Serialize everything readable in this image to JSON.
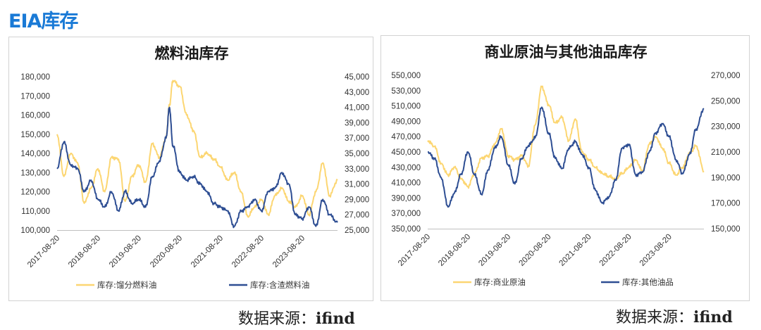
{
  "page": {
    "title": "EIA库存",
    "source_label": "数据来源：",
    "source_value": "ifind"
  },
  "colors": {
    "left_series": "#fcd672",
    "right_series": "#2e4e93",
    "accent": "#1a7ad6"
  },
  "chart_data": [
    {
      "type": "line",
      "title": "燃料油库存",
      "x_tick_labels": [
        "2017-08-20",
        "2018-08-20",
        "2019-08-20",
        "2020-08-20",
        "2021-08-20",
        "2022-08-20",
        "2023-08-20"
      ],
      "x_range": [
        "2017-08-20",
        "2024-06-30"
      ],
      "y_left": {
        "range": [
          100000,
          180000
        ],
        "ticks": [
          "100,000",
          "110,000",
          "120,000",
          "130,000",
          "140,000",
          "150,000",
          "160,000",
          "170,000",
          "180,000"
        ]
      },
      "y_right": {
        "range": [
          25000,
          45000
        ],
        "ticks": [
          "25,000",
          "27,000",
          "29,000",
          "31,000",
          "33,000",
          "35,000",
          "37,000",
          "39,000",
          "41,000",
          "43,000",
          "45,000"
        ]
      },
      "grid": false,
      "legend_position": "bottom",
      "series": [
        {
          "name": "库存:馏分燃料油",
          "axis": "left",
          "color": "#fcd672",
          "x": [
            "2017-08-20",
            "2017-10-20",
            "2017-12-20",
            "2018-02-20",
            "2018-04-20",
            "2018-06-20",
            "2018-08-20",
            "2018-10-20",
            "2018-12-20",
            "2019-02-20",
            "2019-04-20",
            "2019-06-20",
            "2019-08-20",
            "2019-10-20",
            "2019-12-20",
            "2020-02-20",
            "2020-04-20",
            "2020-05-20",
            "2020-06-20",
            "2020-08-20",
            "2020-10-20",
            "2020-12-20",
            "2021-02-20",
            "2021-04-20",
            "2021-06-20",
            "2021-08-20",
            "2021-10-20",
            "2021-12-20",
            "2022-02-20",
            "2022-04-20",
            "2022-06-20",
            "2022-08-20",
            "2022-10-20",
            "2022-12-20",
            "2023-02-20",
            "2023-04-20",
            "2023-06-20",
            "2023-08-20",
            "2023-10-20",
            "2023-12-20",
            "2024-02-20",
            "2024-04-20",
            "2024-06-30"
          ],
          "values": [
            150000,
            128000,
            140000,
            135000,
            114000,
            122000,
            132000,
            120000,
            138000,
            137000,
            115000,
            128000,
            134000,
            125000,
            145000,
            138000,
            148000,
            165000,
            178000,
            175000,
            160000,
            152000,
            138000,
            140000,
            137000,
            133000,
            126000,
            130000,
            120000,
            107000,
            112000,
            116000,
            108000,
            118000,
            122000,
            115000,
            112000,
            118000,
            108000,
            120000,
            135000,
            118000,
            126000
          ]
        },
        {
          "name": "库存:含渣燃料油",
          "axis": "right",
          "color": "#2e4e93",
          "x": [
            "2017-08-20",
            "2017-10-20",
            "2017-12-20",
            "2018-02-20",
            "2018-04-20",
            "2018-06-20",
            "2018-08-20",
            "2018-10-20",
            "2018-12-20",
            "2019-02-20",
            "2019-04-20",
            "2019-06-20",
            "2019-08-20",
            "2019-10-20",
            "2019-12-20",
            "2020-02-20",
            "2020-04-20",
            "2020-05-20",
            "2020-06-20",
            "2020-08-20",
            "2020-10-20",
            "2020-12-20",
            "2021-02-20",
            "2021-04-20",
            "2021-06-20",
            "2021-08-20",
            "2021-10-20",
            "2021-12-20",
            "2022-02-20",
            "2022-04-20",
            "2022-06-20",
            "2022-08-20",
            "2022-10-20",
            "2022-12-20",
            "2023-02-20",
            "2023-04-20",
            "2023-06-20",
            "2023-08-20",
            "2023-10-20",
            "2023-12-20",
            "2024-02-20",
            "2024-04-20",
            "2024-06-30"
          ],
          "values": [
            33000,
            36500,
            33500,
            33000,
            30000,
            31500,
            29000,
            28000,
            30000,
            27500,
            30000,
            28500,
            29000,
            28000,
            32000,
            34000,
            37000,
            41000,
            36000,
            32500,
            31500,
            32000,
            31000,
            30000,
            28500,
            28000,
            27500,
            25500,
            27500,
            28000,
            29000,
            27500,
            30000,
            30500,
            32500,
            31000,
            27000,
            26500,
            28000,
            25500,
            29000,
            27000,
            26000
          ]
        }
      ]
    },
    {
      "type": "line",
      "title": "商业原油与其他油品库存",
      "x_tick_labels": [
        "2017-08-20",
        "2018-08-20",
        "2019-08-20",
        "2020-08-20",
        "2021-08-20",
        "2022-08-20",
        "2023-08-20"
      ],
      "x_range": [
        "2017-08-20",
        "2024-06-30"
      ],
      "y_left": {
        "range": [
          350000,
          550000
        ],
        "ticks": [
          "350,000",
          "370,000",
          "390,000",
          "410,000",
          "430,000",
          "450,000",
          "470,000",
          "490,000",
          "510,000",
          "530,000",
          "550,000"
        ]
      },
      "y_right": {
        "range": [
          150000,
          270000
        ],
        "ticks": [
          "150,000",
          "170,000",
          "190,000",
          "210,000",
          "230,000",
          "250,000",
          "270,000"
        ]
      },
      "grid": false,
      "legend_position": "bottom",
      "series": [
        {
          "name": "库存:商业原油",
          "axis": "left",
          "color": "#fcd672",
          "x": [
            "2017-08-20",
            "2017-10-20",
            "2017-12-20",
            "2018-02-20",
            "2018-04-20",
            "2018-06-20",
            "2018-08-20",
            "2018-10-20",
            "2018-12-20",
            "2019-02-20",
            "2019-04-20",
            "2019-06-20",
            "2019-08-20",
            "2019-10-20",
            "2019-12-20",
            "2020-02-20",
            "2020-04-20",
            "2020-06-20",
            "2020-08-20",
            "2020-10-20",
            "2020-12-20",
            "2021-02-20",
            "2021-04-20",
            "2021-06-20",
            "2021-08-20",
            "2021-10-20",
            "2021-12-20",
            "2022-02-20",
            "2022-04-20",
            "2022-06-20",
            "2022-08-20",
            "2022-10-20",
            "2022-12-20",
            "2023-02-20",
            "2023-04-20",
            "2023-06-20",
            "2023-08-20",
            "2023-10-20",
            "2023-12-20",
            "2024-02-20",
            "2024-04-20",
            "2024-06-30"
          ],
          "values": [
            465000,
            457000,
            435000,
            420000,
            430000,
            415000,
            405000,
            422000,
            442000,
            445000,
            460000,
            480000,
            445000,
            440000,
            445000,
            432000,
            485000,
            535000,
            512000,
            488000,
            495000,
            465000,
            493000,
            450000,
            440000,
            430000,
            422000,
            418000,
            415000,
            422000,
            430000,
            440000,
            425000,
            460000,
            470000,
            455000,
            435000,
            420000,
            430000,
            448000,
            458000,
            425000
          ]
        },
        {
          "name": "库存:其他油品",
          "axis": "right",
          "color": "#2e4e93",
          "x": [
            "2017-08-20",
            "2017-10-20",
            "2017-12-20",
            "2018-02-20",
            "2018-04-20",
            "2018-06-20",
            "2018-08-20",
            "2018-10-20",
            "2018-12-20",
            "2019-02-20",
            "2019-04-20",
            "2019-06-20",
            "2019-08-20",
            "2019-10-20",
            "2019-12-20",
            "2020-02-20",
            "2020-04-20",
            "2020-06-20",
            "2020-08-20",
            "2020-10-20",
            "2020-12-20",
            "2021-02-20",
            "2021-04-20",
            "2021-06-20",
            "2021-08-20",
            "2021-10-20",
            "2021-12-20",
            "2022-02-20",
            "2022-04-20",
            "2022-06-20",
            "2022-08-20",
            "2022-10-20",
            "2022-12-20",
            "2023-02-20",
            "2023-04-20",
            "2023-06-20",
            "2023-08-20",
            "2023-10-20",
            "2023-12-20",
            "2024-02-20",
            "2024-04-20",
            "2024-06-30"
          ],
          "values": [
            210000,
            205000,
            190000,
            167000,
            178000,
            193000,
            210000,
            192000,
            177000,
            196000,
            213000,
            222000,
            200000,
            185000,
            205000,
            215000,
            221000,
            245000,
            225000,
            205000,
            197000,
            213000,
            218000,
            208000,
            198000,
            180000,
            170000,
            175000,
            188000,
            213000,
            216000,
            192000,
            194000,
            210000,
            225000,
            232000,
            222000,
            204000,
            193000,
            208000,
            228000,
            244000
          ]
        }
      ]
    }
  ]
}
